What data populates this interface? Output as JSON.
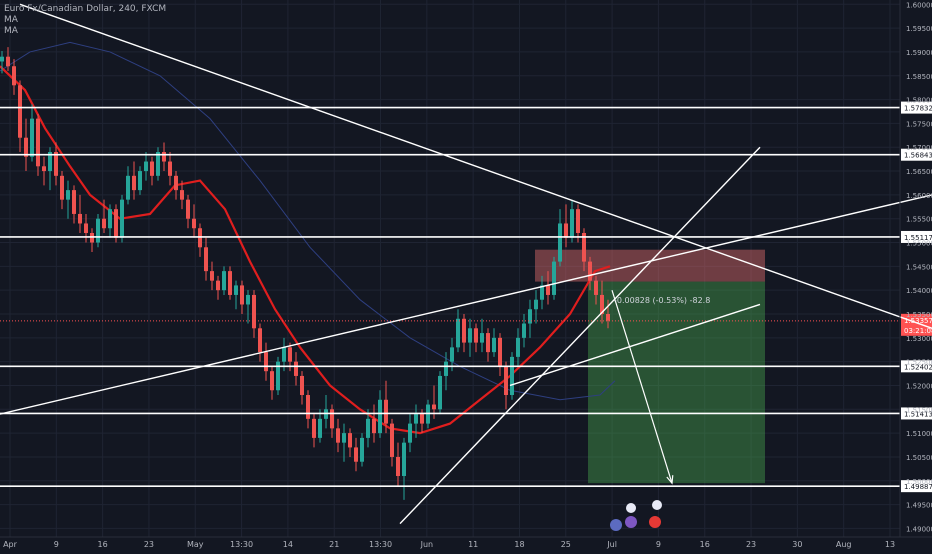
{
  "legend": {
    "title": "Euro Fx/Canadian Dollar, 240, FXCM",
    "ma1": "MA",
    "ma2": "MA"
  },
  "colors": {
    "background": "#131722",
    "grid": "#1f2433",
    "up": "#26a69a",
    "down": "#ef5350",
    "ma_fast": "#e01e1e",
    "ma_slow": "#2e3f80",
    "lines": "#ffffff",
    "entry": "#ff5252",
    "stop_zone": "#e06d6d",
    "target_zone": "#4caf50",
    "axis_text": "#b2b5be"
  },
  "price_axis": {
    "ticks": [
      "1.60000",
      "1.59500",
      "1.59000",
      "1.58500",
      "1.58000",
      "1.57500",
      "1.57000",
      "1.56500",
      "1.56000",
      "1.55500",
      "1.55000",
      "1.54500",
      "1.54000",
      "1.53500",
      "1.53000",
      "1.52500",
      "1.52000",
      "1.51500",
      "1.51000",
      "1.50500",
      "1.50000",
      "1.49500",
      "1.49000"
    ]
  },
  "time_axis": {
    "labels": [
      "Apr",
      "9",
      "16",
      "23",
      "May",
      "13:30",
      "14",
      "21",
      "13:30",
      "Jun",
      "11",
      "18",
      "25",
      "Jul",
      "9",
      "16",
      "23",
      "30",
      "Aug",
      "13"
    ]
  },
  "levels": [
    {
      "label": "1.57832",
      "price": 1.57832
    },
    {
      "label": "1.56843",
      "price": 1.56843
    },
    {
      "label": "1.55117",
      "price": 1.55117
    },
    {
      "label": "1.52402",
      "price": 1.52402
    },
    {
      "label": "1.51413",
      "price": 1.51413
    },
    {
      "label": "1.49887",
      "price": 1.49887
    }
  ],
  "current_price": {
    "label": "1.53357",
    "countdown": "03:21:08",
    "price": 1.53357
  },
  "position": {
    "label": "-0.00828 (-0.53%) -82.8",
    "entry": 1.5418,
    "stop": 1.5485,
    "target": 1.4995
  },
  "chart_data": {
    "type": "candlestick",
    "symbol": "Euro Fx/Canadian Dollar",
    "interval": "240",
    "source": "FXCM",
    "ylim": [
      1.4882,
      1.6009
    ],
    "price_levels": [
      1.57832,
      1.56843,
      1.55117,
      1.52402,
      1.51413,
      1.49887
    ],
    "last_price": 1.53357,
    "ma_fast": [
      [
        0,
        1.587
      ],
      [
        25,
        1.582
      ],
      [
        45,
        1.574
      ],
      [
        70,
        1.566
      ],
      [
        90,
        1.56
      ],
      [
        120,
        1.555
      ],
      [
        150,
        1.556
      ],
      [
        175,
        1.562
      ],
      [
        200,
        1.563
      ],
      [
        225,
        1.557
      ],
      [
        250,
        1.546
      ],
      [
        275,
        1.536
      ],
      [
        300,
        1.528
      ],
      [
        330,
        1.52
      ],
      [
        360,
        1.515
      ],
      [
        390,
        1.511
      ],
      [
        420,
        1.51
      ],
      [
        450,
        1.512
      ],
      [
        480,
        1.517
      ],
      [
        510,
        1.522
      ],
      [
        540,
        1.528
      ],
      [
        570,
        1.535
      ],
      [
        595,
        1.544
      ],
      [
        610,
        1.545
      ]
    ],
    "ma_slow": [
      [
        0,
        1.586
      ],
      [
        30,
        1.59
      ],
      [
        70,
        1.592
      ],
      [
        110,
        1.59
      ],
      [
        160,
        1.585
      ],
      [
        210,
        1.576
      ],
      [
        260,
        1.563
      ],
      [
        310,
        1.549
      ],
      [
        360,
        1.538
      ],
      [
        410,
        1.53
      ],
      [
        460,
        1.524
      ],
      [
        510,
        1.519
      ],
      [
        560,
        1.517
      ],
      [
        600,
        1.518
      ],
      [
        615,
        1.521
      ]
    ],
    "candles": [
      {
        "t": 2,
        "o": 1.588,
        "h": 1.5902,
        "l": 1.5855,
        "c": 1.589
      },
      {
        "t": 8,
        "o": 1.589,
        "h": 1.591,
        "l": 1.586,
        "c": 1.587
      },
      {
        "t": 14,
        "o": 1.587,
        "h": 1.5885,
        "l": 1.581,
        "c": 1.583
      },
      {
        "t": 20,
        "o": 1.583,
        "h": 1.584,
        "l": 1.569,
        "c": 1.572
      },
      {
        "t": 26,
        "o": 1.572,
        "h": 1.576,
        "l": 1.565,
        "c": 1.568
      },
      {
        "t": 32,
        "o": 1.568,
        "h": 1.579,
        "l": 1.567,
        "c": 1.576
      },
      {
        "t": 38,
        "o": 1.576,
        "h": 1.577,
        "l": 1.564,
        "c": 1.566
      },
      {
        "t": 44,
        "o": 1.566,
        "h": 1.568,
        "l": 1.562,
        "c": 1.565
      },
      {
        "t": 50,
        "o": 1.565,
        "h": 1.57,
        "l": 1.561,
        "c": 1.569
      },
      {
        "t": 56,
        "o": 1.569,
        "h": 1.571,
        "l": 1.562,
        "c": 1.564
      },
      {
        "t": 62,
        "o": 1.564,
        "h": 1.565,
        "l": 1.557,
        "c": 1.559
      },
      {
        "t": 68,
        "o": 1.559,
        "h": 1.563,
        "l": 1.555,
        "c": 1.561
      },
      {
        "t": 74,
        "o": 1.561,
        "h": 1.562,
        "l": 1.554,
        "c": 1.556
      },
      {
        "t": 80,
        "o": 1.556,
        "h": 1.56,
        "l": 1.552,
        "c": 1.554
      },
      {
        "t": 86,
        "o": 1.554,
        "h": 1.556,
        "l": 1.55,
        "c": 1.552
      },
      {
        "t": 92,
        "o": 1.552,
        "h": 1.553,
        "l": 1.548,
        "c": 1.55
      },
      {
        "t": 98,
        "o": 1.55,
        "h": 1.556,
        "l": 1.549,
        "c": 1.555
      },
      {
        "t": 104,
        "o": 1.555,
        "h": 1.559,
        "l": 1.552,
        "c": 1.553
      },
      {
        "t": 110,
        "o": 1.553,
        "h": 1.558,
        "l": 1.551,
        "c": 1.557
      },
      {
        "t": 116,
        "o": 1.557,
        "h": 1.558,
        "l": 1.55,
        "c": 1.551
      },
      {
        "t": 122,
        "o": 1.551,
        "h": 1.56,
        "l": 1.55,
        "c": 1.559
      },
      {
        "t": 128,
        "o": 1.559,
        "h": 1.566,
        "l": 1.558,
        "c": 1.564
      },
      {
        "t": 134,
        "o": 1.564,
        "h": 1.567,
        "l": 1.559,
        "c": 1.561
      },
      {
        "t": 140,
        "o": 1.561,
        "h": 1.566,
        "l": 1.56,
        "c": 1.565
      },
      {
        "t": 146,
        "o": 1.565,
        "h": 1.569,
        "l": 1.563,
        "c": 1.567
      },
      {
        "t": 152,
        "o": 1.567,
        "h": 1.568,
        "l": 1.562,
        "c": 1.564
      },
      {
        "t": 158,
        "o": 1.564,
        "h": 1.57,
        "l": 1.563,
        "c": 1.569
      },
      {
        "t": 164,
        "o": 1.569,
        "h": 1.571,
        "l": 1.565,
        "c": 1.567
      },
      {
        "t": 170,
        "o": 1.567,
        "h": 1.569,
        "l": 1.562,
        "c": 1.564
      },
      {
        "t": 176,
        "o": 1.564,
        "h": 1.565,
        "l": 1.559,
        "c": 1.561
      },
      {
        "t": 182,
        "o": 1.561,
        "h": 1.563,
        "l": 1.557,
        "c": 1.559
      },
      {
        "t": 188,
        "o": 1.559,
        "h": 1.56,
        "l": 1.553,
        "c": 1.555
      },
      {
        "t": 194,
        "o": 1.555,
        "h": 1.558,
        "l": 1.551,
        "c": 1.553
      },
      {
        "t": 200,
        "o": 1.553,
        "h": 1.554,
        "l": 1.547,
        "c": 1.549
      },
      {
        "t": 206,
        "o": 1.549,
        "h": 1.551,
        "l": 1.542,
        "c": 1.544
      },
      {
        "t": 212,
        "o": 1.544,
        "h": 1.546,
        "l": 1.54,
        "c": 1.542
      },
      {
        "t": 218,
        "o": 1.542,
        "h": 1.543,
        "l": 1.538,
        "c": 1.54
      },
      {
        "t": 224,
        "o": 1.54,
        "h": 1.545,
        "l": 1.539,
        "c": 1.544
      },
      {
        "t": 230,
        "o": 1.544,
        "h": 1.545,
        "l": 1.538,
        "c": 1.539
      },
      {
        "t": 236,
        "o": 1.539,
        "h": 1.542,
        "l": 1.536,
        "c": 1.541
      },
      {
        "t": 242,
        "o": 1.541,
        "h": 1.542,
        "l": 1.535,
        "c": 1.537
      },
      {
        "t": 248,
        "o": 1.537,
        "h": 1.54,
        "l": 1.533,
        "c": 1.539
      },
      {
        "t": 254,
        "o": 1.539,
        "h": 1.54,
        "l": 1.53,
        "c": 1.532
      },
      {
        "t": 260,
        "o": 1.532,
        "h": 1.533,
        "l": 1.525,
        "c": 1.527
      },
      {
        "t": 266,
        "o": 1.527,
        "h": 1.529,
        "l": 1.521,
        "c": 1.523
      },
      {
        "t": 272,
        "o": 1.523,
        "h": 1.524,
        "l": 1.517,
        "c": 1.519
      },
      {
        "t": 278,
        "o": 1.519,
        "h": 1.526,
        "l": 1.518,
        "c": 1.525
      },
      {
        "t": 284,
        "o": 1.525,
        "h": 1.53,
        "l": 1.523,
        "c": 1.528
      },
      {
        "t": 290,
        "o": 1.528,
        "h": 1.529,
        "l": 1.523,
        "c": 1.525
      },
      {
        "t": 296,
        "o": 1.525,
        "h": 1.527,
        "l": 1.52,
        "c": 1.522
      },
      {
        "t": 302,
        "o": 1.522,
        "h": 1.523,
        "l": 1.516,
        "c": 1.518
      },
      {
        "t": 308,
        "o": 1.518,
        "h": 1.519,
        "l": 1.511,
        "c": 1.513
      },
      {
        "t": 314,
        "o": 1.513,
        "h": 1.514,
        "l": 1.507,
        "c": 1.509
      },
      {
        "t": 320,
        "o": 1.509,
        "h": 1.515,
        "l": 1.508,
        "c": 1.513
      },
      {
        "t": 326,
        "o": 1.513,
        "h": 1.518,
        "l": 1.511,
        "c": 1.515
      },
      {
        "t": 332,
        "o": 1.515,
        "h": 1.516,
        "l": 1.509,
        "c": 1.511
      },
      {
        "t": 338,
        "o": 1.511,
        "h": 1.513,
        "l": 1.506,
        "c": 1.508
      },
      {
        "t": 344,
        "o": 1.508,
        "h": 1.512,
        "l": 1.504,
        "c": 1.51
      },
      {
        "t": 350,
        "o": 1.51,
        "h": 1.511,
        "l": 1.505,
        "c": 1.507
      },
      {
        "t": 356,
        "o": 1.507,
        "h": 1.509,
        "l": 1.502,
        "c": 1.504
      },
      {
        "t": 362,
        "o": 1.504,
        "h": 1.51,
        "l": 1.503,
        "c": 1.509
      },
      {
        "t": 368,
        "o": 1.509,
        "h": 1.515,
        "l": 1.507,
        "c": 1.513
      },
      {
        "t": 374,
        "o": 1.513,
        "h": 1.516,
        "l": 1.508,
        "c": 1.51
      },
      {
        "t": 380,
        "o": 1.51,
        "h": 1.519,
        "l": 1.509,
        "c": 1.517
      },
      {
        "t": 386,
        "o": 1.517,
        "h": 1.521,
        "l": 1.51,
        "c": 1.512
      },
      {
        "t": 392,
        "o": 1.512,
        "h": 1.513,
        "l": 1.503,
        "c": 1.505
      },
      {
        "t": 398,
        "o": 1.505,
        "h": 1.508,
        "l": 1.499,
        "c": 1.501
      },
      {
        "t": 404,
        "o": 1.501,
        "h": 1.509,
        "l": 1.496,
        "c": 1.508
      },
      {
        "t": 410,
        "o": 1.508,
        "h": 1.514,
        "l": 1.506,
        "c": 1.512
      },
      {
        "t": 416,
        "o": 1.512,
        "h": 1.516,
        "l": 1.509,
        "c": 1.514
      },
      {
        "t": 422,
        "o": 1.514,
        "h": 1.515,
        "l": 1.51,
        "c": 1.512
      },
      {
        "t": 428,
        "o": 1.512,
        "h": 1.517,
        "l": 1.511,
        "c": 1.516
      },
      {
        "t": 434,
        "o": 1.516,
        "h": 1.52,
        "l": 1.513,
        "c": 1.515
      },
      {
        "t": 440,
        "o": 1.515,
        "h": 1.523,
        "l": 1.514,
        "c": 1.522
      },
      {
        "t": 446,
        "o": 1.522,
        "h": 1.527,
        "l": 1.519,
        "c": 1.525
      },
      {
        "t": 452,
        "o": 1.525,
        "h": 1.53,
        "l": 1.523,
        "c": 1.528
      },
      {
        "t": 458,
        "o": 1.528,
        "h": 1.536,
        "l": 1.527,
        "c": 1.534
      },
      {
        "t": 464,
        "o": 1.534,
        "h": 1.535,
        "l": 1.527,
        "c": 1.529
      },
      {
        "t": 470,
        "o": 1.529,
        "h": 1.534,
        "l": 1.526,
        "c": 1.532
      },
      {
        "t": 476,
        "o": 1.532,
        "h": 1.533,
        "l": 1.527,
        "c": 1.529
      },
      {
        "t": 482,
        "o": 1.529,
        "h": 1.534,
        "l": 1.527,
        "c": 1.531
      },
      {
        "t": 488,
        "o": 1.531,
        "h": 1.532,
        "l": 1.525,
        "c": 1.527
      },
      {
        "t": 494,
        "o": 1.527,
        "h": 1.532,
        "l": 1.526,
        "c": 1.53
      },
      {
        "t": 500,
        "o": 1.53,
        "h": 1.531,
        "l": 1.522,
        "c": 1.524
      },
      {
        "t": 506,
        "o": 1.524,
        "h": 1.525,
        "l": 1.515,
        "c": 1.518
      },
      {
        "t": 512,
        "o": 1.518,
        "h": 1.527,
        "l": 1.517,
        "c": 1.526
      },
      {
        "t": 518,
        "o": 1.526,
        "h": 1.532,
        "l": 1.524,
        "c": 1.53
      },
      {
        "t": 524,
        "o": 1.53,
        "h": 1.535,
        "l": 1.528,
        "c": 1.533
      },
      {
        "t": 530,
        "o": 1.533,
        "h": 1.538,
        "l": 1.53,
        "c": 1.536
      },
      {
        "t": 536,
        "o": 1.536,
        "h": 1.54,
        "l": 1.533,
        "c": 1.538
      },
      {
        "t": 542,
        "o": 1.538,
        "h": 1.543,
        "l": 1.536,
        "c": 1.541
      },
      {
        "t": 548,
        "o": 1.541,
        "h": 1.544,
        "l": 1.537,
        "c": 1.539
      },
      {
        "t": 554,
        "o": 1.539,
        "h": 1.547,
        "l": 1.538,
        "c": 1.546
      },
      {
        "t": 560,
        "o": 1.546,
        "h": 1.557,
        "l": 1.545,
        "c": 1.554
      },
      {
        "t": 566,
        "o": 1.554,
        "h": 1.558,
        "l": 1.549,
        "c": 1.551
      },
      {
        "t": 572,
        "o": 1.551,
        "h": 1.559,
        "l": 1.55,
        "c": 1.557
      },
      {
        "t": 578,
        "o": 1.557,
        "h": 1.558,
        "l": 1.55,
        "c": 1.552
      },
      {
        "t": 584,
        "o": 1.552,
        "h": 1.553,
        "l": 1.544,
        "c": 1.546
      },
      {
        "t": 590,
        "o": 1.546,
        "h": 1.547,
        "l": 1.54,
        "c": 1.542
      },
      {
        "t": 596,
        "o": 1.542,
        "h": 1.543,
        "l": 1.537,
        "c": 1.539
      },
      {
        "t": 602,
        "o": 1.539,
        "h": 1.542,
        "l": 1.533,
        "c": 1.535
      },
      {
        "t": 608,
        "o": 1.535,
        "h": 1.538,
        "l": 1.532,
        "c": 1.5336
      }
    ],
    "trendlines": [
      {
        "from": [
          20,
          1.6
        ],
        "to": [
          932,
          1.532
        ]
      },
      {
        "from": [
          0,
          1.514
        ],
        "to": [
          932,
          1.56
        ]
      },
      {
        "from": [
          400,
          1.491
        ],
        "to": [
          760,
          1.57
        ]
      },
      {
        "from": [
          510,
          1.52
        ],
        "to": [
          760,
          1.537
        ]
      }
    ],
    "projection": {
      "from": [
        612,
        1.54
      ],
      "to": [
        672,
        1.4995
      ]
    }
  }
}
